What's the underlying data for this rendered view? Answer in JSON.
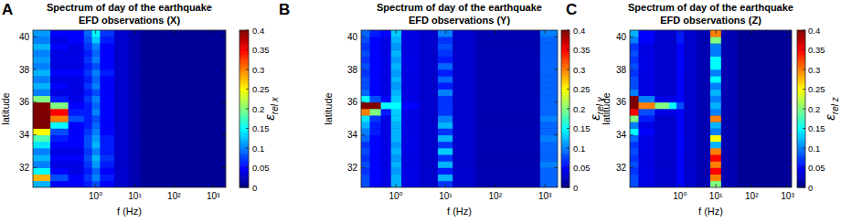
{
  "chart_data": [
    {
      "type": "heatmap",
      "panel": "A",
      "title": "Spectrum of day of the earthquake",
      "subtitle": "EFD observations (X)",
      "x_label": "f (Hz)",
      "y_label": "latitude",
      "log": "x",
      "xlim": [
        0.025,
        2100
      ],
      "xticks": [
        {
          "value": 1,
          "label": "10⁰"
        },
        {
          "value": 10,
          "label": "10¹"
        },
        {
          "value": 100,
          "label": "10²"
        },
        {
          "value": 1000,
          "label": "10³"
        }
      ],
      "ylim": [
        30.8,
        40.4
      ],
      "yticks": [
        32,
        34,
        36,
        38,
        40
      ],
      "x_edges": [
        0.025,
        0.07,
        0.2,
        0.5,
        0.8,
        1.3,
        3,
        7,
        14,
        40,
        300,
        800,
        2100
      ],
      "y_edges": [
        30.8,
        31.2,
        31.6,
        32,
        32.4,
        32.8,
        33.2,
        33.6,
        34,
        34.4,
        34.8,
        35.2,
        35.6,
        36,
        36.4,
        36.8,
        37.2,
        37.6,
        38,
        38.4,
        38.8,
        39.2,
        39.6,
        40,
        40.4
      ],
      "cells": [
        [
          0.12,
          0.05,
          0.05,
          0.06,
          0.08,
          0.05,
          0.03,
          0.02,
          0.01,
          0.01,
          0.01,
          0.01
        ],
        [
          0.28,
          0.08,
          0.05,
          0.07,
          0.1,
          0.06,
          0.03,
          0.02,
          0.01,
          0.01,
          0.01,
          0.01
        ],
        [
          0.15,
          0.05,
          0.04,
          0.06,
          0.09,
          0.05,
          0.03,
          0.02,
          0.01,
          0.01,
          0.01,
          0.01
        ],
        [
          0.1,
          0.04,
          0.04,
          0.07,
          0.11,
          0.06,
          0.03,
          0.02,
          0.01,
          0.01,
          0.01,
          0.01
        ],
        [
          0.12,
          0.05,
          0.05,
          0.08,
          0.12,
          0.07,
          0.03,
          0.02,
          0.01,
          0.01,
          0.01,
          0.01
        ],
        [
          0.1,
          0.04,
          0.04,
          0.07,
          0.1,
          0.06,
          0.03,
          0.02,
          0.01,
          0.01,
          0.01,
          0.01
        ],
        [
          0.14,
          0.05,
          0.05,
          0.08,
          0.12,
          0.06,
          0.03,
          0.02,
          0.01,
          0.01,
          0.01,
          0.01
        ],
        [
          0.18,
          0.06,
          0.05,
          0.08,
          0.11,
          0.06,
          0.03,
          0.02,
          0.01,
          0.01,
          0.01,
          0.01
        ],
        [
          0.25,
          0.08,
          0.05,
          0.07,
          0.1,
          0.05,
          0.03,
          0.02,
          0.01,
          0.01,
          0.01,
          0.01
        ],
        [
          0.4,
          0.15,
          0.05,
          0.06,
          0.09,
          0.05,
          0.03,
          0.02,
          0.01,
          0.01,
          0.01,
          0.01
        ],
        [
          0.4,
          0.3,
          0.08,
          0.06,
          0.08,
          0.05,
          0.03,
          0.02,
          0.01,
          0.01,
          0.01,
          0.01
        ],
        [
          0.4,
          0.35,
          0.06,
          0.06,
          0.1,
          0.05,
          0.03,
          0.02,
          0.01,
          0.01,
          0.01,
          0.01
        ],
        [
          0.4,
          0.2,
          0.05,
          0.06,
          0.09,
          0.05,
          0.03,
          0.02,
          0.01,
          0.01,
          0.01,
          0.01
        ],
        [
          0.2,
          0.06,
          0.04,
          0.07,
          0.1,
          0.05,
          0.03,
          0.02,
          0.01,
          0.01,
          0.01,
          0.01
        ],
        [
          0.1,
          0.04,
          0.04,
          0.06,
          0.08,
          0.05,
          0.03,
          0.02,
          0.01,
          0.01,
          0.01,
          0.01
        ],
        [
          0.12,
          0.05,
          0.04,
          0.07,
          0.1,
          0.05,
          0.03,
          0.02,
          0.01,
          0.01,
          0.01,
          0.01
        ],
        [
          0.1,
          0.04,
          0.04,
          0.06,
          0.09,
          0.05,
          0.03,
          0.02,
          0.01,
          0.01,
          0.01,
          0.01
        ],
        [
          0.12,
          0.05,
          0.05,
          0.07,
          0.1,
          0.06,
          0.03,
          0.02,
          0.01,
          0.01,
          0.01,
          0.01
        ],
        [
          0.1,
          0.04,
          0.04,
          0.06,
          0.08,
          0.05,
          0.03,
          0.02,
          0.01,
          0.01,
          0.01,
          0.01
        ],
        [
          0.11,
          0.04,
          0.04,
          0.07,
          0.1,
          0.05,
          0.03,
          0.02,
          0.01,
          0.01,
          0.01,
          0.01
        ],
        [
          0.1,
          0.04,
          0.04,
          0.06,
          0.09,
          0.05,
          0.03,
          0.02,
          0.01,
          0.01,
          0.01,
          0.01
        ],
        [
          0.12,
          0.05,
          0.04,
          0.07,
          0.1,
          0.05,
          0.03,
          0.02,
          0.01,
          0.01,
          0.01,
          0.01
        ],
        [
          0.1,
          0.04,
          0.05,
          0.08,
          0.13,
          0.06,
          0.03,
          0.02,
          0.01,
          0.01,
          0.01,
          0.01
        ],
        [
          0.11,
          0.05,
          0.05,
          0.09,
          0.15,
          0.07,
          0.03,
          0.02,
          0.01,
          0.01,
          0.01,
          0.01
        ]
      ],
      "colorbar": {
        "label": {
          "symbol": "ε",
          "subscript": "rel x"
        },
        "range": [
          0,
          0.4
        ],
        "ticks": [
          0,
          0.05,
          0.1,
          0.15,
          0.2,
          0.25,
          0.3,
          0.35,
          0.4
        ]
      }
    },
    {
      "type": "heatmap",
      "panel": "B",
      "title": "Spectrum of day of the earthquake",
      "subtitle": "EFD observations (Y)",
      "x_label": "f (Hz)",
      "y_label": "latitude",
      "log": "x",
      "xlim": [
        0.2,
        1800
      ],
      "xticks": [
        {
          "value": 1,
          "label": "10⁰"
        },
        {
          "value": 10,
          "label": "10¹"
        },
        {
          "value": 100,
          "label": "10²"
        },
        {
          "value": 1000,
          "label": "10³"
        }
      ],
      "ylim": [
        30.8,
        40.4
      ],
      "yticks": [
        32,
        34,
        36,
        38,
        40
      ],
      "x_edges": [
        0.2,
        0.3,
        0.5,
        0.8,
        1.3,
        3,
        7,
        14,
        40,
        300,
        800,
        1800
      ],
      "y_edges": [
        30.8,
        31.2,
        31.6,
        32,
        32.4,
        32.8,
        33.2,
        33.6,
        34,
        34.4,
        34.8,
        35.2,
        35.6,
        36,
        36.4,
        36.8,
        37.2,
        37.6,
        38,
        38.4,
        38.8,
        39.2,
        39.6,
        40,
        40.4
      ],
      "cells": [
        [
          0.08,
          0.05,
          0.04,
          0.12,
          0.04,
          0.03,
          0.07,
          0.03,
          0.02,
          0.02,
          0.09
        ],
        [
          0.08,
          0.05,
          0.04,
          0.12,
          0.04,
          0.03,
          0.12,
          0.03,
          0.02,
          0.02,
          0.09
        ],
        [
          0.07,
          0.05,
          0.04,
          0.11,
          0.04,
          0.03,
          0.06,
          0.03,
          0.02,
          0.02,
          0.09
        ],
        [
          0.08,
          0.05,
          0.04,
          0.12,
          0.04,
          0.03,
          0.12,
          0.03,
          0.02,
          0.02,
          0.1
        ],
        [
          0.07,
          0.05,
          0.04,
          0.11,
          0.04,
          0.03,
          0.07,
          0.03,
          0.02,
          0.02,
          0.09
        ],
        [
          0.08,
          0.05,
          0.04,
          0.12,
          0.04,
          0.03,
          0.13,
          0.03,
          0.02,
          0.02,
          0.09
        ],
        [
          0.07,
          0.05,
          0.04,
          0.11,
          0.04,
          0.03,
          0.07,
          0.03,
          0.02,
          0.02,
          0.09
        ],
        [
          0.09,
          0.05,
          0.04,
          0.12,
          0.04,
          0.03,
          0.12,
          0.03,
          0.02,
          0.02,
          0.1
        ],
        [
          0.1,
          0.06,
          0.04,
          0.12,
          0.04,
          0.03,
          0.07,
          0.03,
          0.02,
          0.02,
          0.09
        ],
        [
          0.12,
          0.06,
          0.04,
          0.12,
          0.04,
          0.03,
          0.12,
          0.03,
          0.02,
          0.02,
          0.09
        ],
        [
          0.14,
          0.07,
          0.04,
          0.13,
          0.04,
          0.03,
          0.1,
          0.03,
          0.02,
          0.02,
          0.1
        ],
        [
          0.3,
          0.2,
          0.06,
          0.13,
          0.04,
          0.03,
          0.07,
          0.03,
          0.02,
          0.02,
          0.09
        ],
        [
          0.4,
          0.4,
          0.15,
          0.15,
          0.05,
          0.03,
          0.07,
          0.03,
          0.02,
          0.02,
          0.09
        ],
        [
          0.15,
          0.08,
          0.05,
          0.13,
          0.04,
          0.03,
          0.07,
          0.03,
          0.02,
          0.02,
          0.09
        ],
        [
          0.09,
          0.05,
          0.04,
          0.12,
          0.04,
          0.03,
          0.1,
          0.03,
          0.02,
          0.02,
          0.09
        ],
        [
          0.08,
          0.05,
          0.04,
          0.11,
          0.04,
          0.03,
          0.06,
          0.03,
          0.02,
          0.02,
          0.09
        ],
        [
          0.08,
          0.05,
          0.04,
          0.12,
          0.04,
          0.03,
          0.09,
          0.03,
          0.02,
          0.02,
          0.09
        ],
        [
          0.07,
          0.05,
          0.04,
          0.11,
          0.04,
          0.03,
          0.06,
          0.03,
          0.02,
          0.02,
          0.09
        ],
        [
          0.08,
          0.05,
          0.04,
          0.12,
          0.04,
          0.03,
          0.09,
          0.03,
          0.02,
          0.02,
          0.09
        ],
        [
          0.07,
          0.05,
          0.04,
          0.11,
          0.04,
          0.03,
          0.06,
          0.03,
          0.02,
          0.02,
          0.09
        ],
        [
          0.08,
          0.05,
          0.04,
          0.12,
          0.04,
          0.03,
          0.07,
          0.03,
          0.02,
          0.02,
          0.09
        ],
        [
          0.07,
          0.05,
          0.04,
          0.11,
          0.04,
          0.03,
          0.08,
          0.03,
          0.02,
          0.02,
          0.09
        ],
        [
          0.08,
          0.05,
          0.04,
          0.12,
          0.04,
          0.03,
          0.07,
          0.03,
          0.02,
          0.02,
          0.09
        ],
        [
          0.09,
          0.06,
          0.05,
          0.13,
          0.04,
          0.03,
          0.1,
          0.03,
          0.02,
          0.02,
          0.1
        ]
      ],
      "colorbar": {
        "label": {
          "symbol": "ε",
          "subscript": "rel y"
        },
        "range": [
          0,
          0.4
        ],
        "ticks": [
          0,
          0.05,
          0.1,
          0.15,
          0.2,
          0.25,
          0.3,
          0.35,
          0.4
        ]
      }
    },
    {
      "type": "heatmap",
      "panel": "C",
      "title": "Spectrum of day of the earthquake",
      "subtitle": "EFD observations (Z)",
      "x_label": "f (Hz)",
      "y_label": "latitude",
      "log": "x",
      "xlim": [
        0.04,
        1300
      ],
      "xticks": [
        {
          "value": 1,
          "label": "10⁰"
        },
        {
          "value": 10,
          "label": "10¹"
        },
        {
          "value": 100,
          "label": "10²"
        },
        {
          "value": 1000,
          "label": "10³"
        }
      ],
      "ylim": [
        30.8,
        40.4
      ],
      "yticks": [
        32,
        34,
        36,
        38,
        40
      ],
      "x_edges": [
        0.04,
        0.07,
        0.2,
        0.5,
        0.8,
        1.3,
        3,
        7,
        14,
        40,
        300,
        800,
        1300
      ],
      "y_edges": [
        30.8,
        31.2,
        31.6,
        32,
        32.4,
        32.8,
        33.2,
        33.6,
        34,
        34.4,
        34.8,
        35.2,
        35.6,
        36,
        36.4,
        36.8,
        37.2,
        37.6,
        38,
        38.4,
        38.8,
        39.2,
        39.6,
        40,
        40.4
      ],
      "cells": [
        [
          0.08,
          0.04,
          0.03,
          0.03,
          0.05,
          0.03,
          0.02,
          0.2,
          0.02,
          0.01,
          0.01,
          0.01
        ],
        [
          0.08,
          0.04,
          0.03,
          0.03,
          0.05,
          0.03,
          0.02,
          0.3,
          0.02,
          0.01,
          0.01,
          0.01
        ],
        [
          0.07,
          0.04,
          0.03,
          0.03,
          0.05,
          0.03,
          0.02,
          0.35,
          0.02,
          0.01,
          0.01,
          0.01
        ],
        [
          0.08,
          0.04,
          0.03,
          0.03,
          0.05,
          0.03,
          0.02,
          0.3,
          0.02,
          0.01,
          0.01,
          0.01
        ],
        [
          0.07,
          0.04,
          0.03,
          0.03,
          0.05,
          0.03,
          0.02,
          0.35,
          0.02,
          0.01,
          0.01,
          0.01
        ],
        [
          0.08,
          0.04,
          0.03,
          0.03,
          0.05,
          0.03,
          0.02,
          0.3,
          0.02,
          0.01,
          0.01,
          0.01
        ],
        [
          0.07,
          0.04,
          0.03,
          0.03,
          0.05,
          0.03,
          0.02,
          0.12,
          0.02,
          0.01,
          0.01,
          0.01
        ],
        [
          0.09,
          0.04,
          0.03,
          0.03,
          0.05,
          0.03,
          0.02,
          0.25,
          0.02,
          0.01,
          0.01,
          0.01
        ],
        [
          0.15,
          0.05,
          0.03,
          0.03,
          0.05,
          0.03,
          0.02,
          0.1,
          0.02,
          0.01,
          0.01,
          0.01
        ],
        [
          0.1,
          0.04,
          0.03,
          0.03,
          0.05,
          0.03,
          0.02,
          0.12,
          0.02,
          0.01,
          0.01,
          0.01
        ],
        [
          0.2,
          0.06,
          0.03,
          0.03,
          0.05,
          0.03,
          0.02,
          0.3,
          0.02,
          0.01,
          0.01,
          0.01
        ],
        [
          0.35,
          0.08,
          0.04,
          0.04,
          0.05,
          0.03,
          0.02,
          0.1,
          0.02,
          0.01,
          0.01,
          0.01
        ],
        [
          0.4,
          0.3,
          0.2,
          0.15,
          0.08,
          0.03,
          0.02,
          0.12,
          0.02,
          0.01,
          0.01,
          0.01
        ],
        [
          0.4,
          0.1,
          0.04,
          0.04,
          0.05,
          0.03,
          0.02,
          0.1,
          0.02,
          0.01,
          0.01,
          0.01
        ],
        [
          0.1,
          0.04,
          0.03,
          0.03,
          0.05,
          0.03,
          0.02,
          0.12,
          0.02,
          0.01,
          0.01,
          0.01
        ],
        [
          0.08,
          0.04,
          0.03,
          0.03,
          0.05,
          0.03,
          0.02,
          0.1,
          0.02,
          0.01,
          0.01,
          0.01
        ],
        [
          0.08,
          0.04,
          0.03,
          0.03,
          0.05,
          0.03,
          0.02,
          0.15,
          0.02,
          0.01,
          0.01,
          0.01
        ],
        [
          0.07,
          0.04,
          0.03,
          0.03,
          0.05,
          0.03,
          0.02,
          0.1,
          0.02,
          0.01,
          0.01,
          0.01
        ],
        [
          0.08,
          0.04,
          0.03,
          0.03,
          0.05,
          0.03,
          0.02,
          0.15,
          0.02,
          0.01,
          0.01,
          0.01
        ],
        [
          0.07,
          0.04,
          0.03,
          0.03,
          0.05,
          0.03,
          0.02,
          0.15,
          0.02,
          0.01,
          0.01,
          0.01
        ],
        [
          0.08,
          0.04,
          0.03,
          0.03,
          0.05,
          0.03,
          0.02,
          0.1,
          0.02,
          0.01,
          0.01,
          0.01
        ],
        [
          0.07,
          0.04,
          0.03,
          0.03,
          0.05,
          0.03,
          0.02,
          0.1,
          0.02,
          0.01,
          0.01,
          0.01
        ],
        [
          0.1,
          0.05,
          0.03,
          0.03,
          0.06,
          0.03,
          0.02,
          0.2,
          0.02,
          0.01,
          0.01,
          0.01
        ],
        [
          0.12,
          0.05,
          0.03,
          0.03,
          0.06,
          0.03,
          0.02,
          0.3,
          0.02,
          0.01,
          0.01,
          0.01
        ]
      ],
      "colorbar": {
        "label": {
          "symbol": "ε",
          "subscript": "rel z"
        },
        "range": [
          0,
          0.4
        ],
        "ticks": [
          0,
          0.05,
          0.1,
          0.15,
          0.2,
          0.25,
          0.3,
          0.35,
          0.4
        ]
      }
    }
  ]
}
